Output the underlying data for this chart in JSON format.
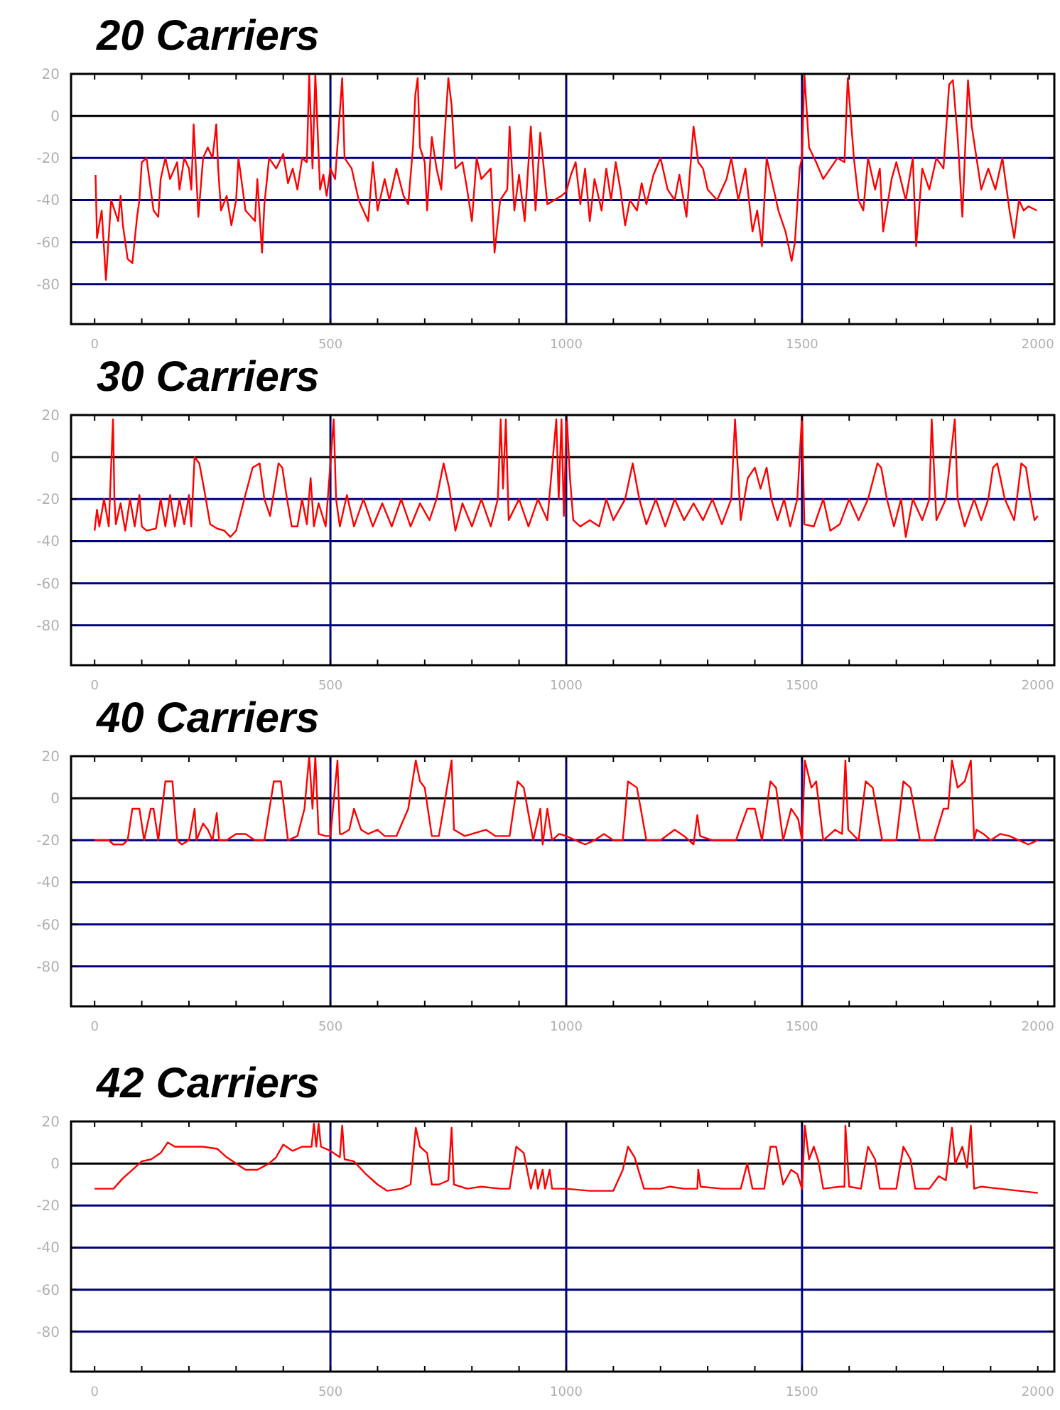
{
  "chart_data": [
    {
      "type": "line",
      "title": "20 Carriers",
      "xlim": [
        -50,
        2035
      ],
      "ylim": [
        -99,
        20
      ],
      "xticks": [
        0,
        {
          "value": 100,
          "label": null
        },
        {
          "value": 200,
          "label": null
        },
        {
          "value": 300,
          "label": null
        },
        {
          "value": 400,
          "label": null
        },
        500,
        {
          "value": 600,
          "label": null
        },
        {
          "value": 700,
          "label": null
        },
        {
          "value": 800,
          "label": null
        },
        {
          "value": 900,
          "label": null
        },
        1000,
        {
          "value": 1100,
          "label": null
        },
        {
          "value": 1200,
          "label": null
        },
        {
          "value": 1300,
          "label": null
        },
        {
          "value": 1400,
          "label": null
        },
        1500,
        {
          "value": 1600,
          "label": null
        },
        {
          "value": 1700,
          "label": null
        },
        {
          "value": 1800,
          "label": null
        },
        {
          "value": 1900,
          "label": null
        },
        2000
      ],
      "yticks": [
        -80,
        -60,
        -40,
        -20,
        0,
        20
      ],
      "ref_lines": [
        {
          "axis": "y",
          "value": 0,
          "color": "#000000"
        },
        {
          "axis": "y",
          "value": -20,
          "color": "#000080"
        },
        {
          "axis": "y",
          "value": -40,
          "color": "#000080"
        },
        {
          "axis": "y",
          "value": -60,
          "color": "#000080"
        },
        {
          "axis": "y",
          "value": -80,
          "color": "#000080"
        },
        {
          "axis": "x",
          "value": 500,
          "color": "#000080"
        },
        {
          "axis": "x",
          "value": 1000,
          "color": "#000080"
        },
        {
          "axis": "x",
          "value": 1500,
          "color": "#000080"
        }
      ],
      "x": [
        2,
        5,
        15,
        24,
        35,
        50,
        55,
        60,
        70,
        80,
        90,
        95,
        100,
        110,
        125,
        135,
        140,
        150,
        160,
        175,
        180,
        190,
        200,
        205,
        210,
        220,
        230,
        240,
        250,
        258,
        262,
        268,
        280,
        290,
        300,
        305,
        320,
        340,
        345,
        355,
        360,
        370,
        385,
        400,
        410,
        420,
        430,
        440,
        450,
        455,
        462,
        468,
        478,
        485,
        492,
        500,
        510,
        525,
        530,
        545,
        560,
        580,
        590,
        600,
        615,
        625,
        640,
        655,
        665,
        675,
        680,
        685,
        690,
        700,
        705,
        715,
        725,
        735,
        750,
        757,
        765,
        780,
        790,
        800,
        810,
        820,
        840,
        848,
        860,
        875,
        880,
        890,
        900,
        912,
        925,
        935,
        945,
        960,
        990,
        1000,
        1010,
        1020,
        1030,
        1040,
        1050,
        1060,
        1075,
        1085,
        1095,
        1105,
        1115,
        1125,
        1135,
        1150,
        1160,
        1170,
        1185,
        1200,
        1215,
        1230,
        1240,
        1255,
        1270,
        1280,
        1290,
        1300,
        1320,
        1340,
        1350,
        1365,
        1380,
        1395,
        1405,
        1415,
        1425,
        1435,
        1450,
        1465,
        1478,
        1485,
        1495,
        1500,
        1505,
        1515,
        1530,
        1545,
        1560,
        1575,
        1590,
        1597,
        1610,
        1620,
        1630,
        1640,
        1655,
        1665,
        1672,
        1690,
        1700,
        1720,
        1735,
        1742,
        1755,
        1770,
        1785,
        1800,
        1812,
        1820,
        1830,
        1840,
        1852,
        1860,
        1870,
        1880,
        1895,
        1910,
        1925,
        1940,
        1950,
        1960,
        1970,
        1980,
        1998
      ],
      "series": [
        {
          "color": "#ff0000",
          "values": [
            -28,
            -58,
            -45,
            -78,
            -40,
            -50,
            -38,
            -52,
            -68,
            -70,
            -48,
            -40,
            -22,
            -20,
            -45,
            -48,
            -30,
            -20,
            -30,
            -22,
            -35,
            -20,
            -25,
            -35,
            -4,
            -48,
            -20,
            -15,
            -20,
            -4,
            -25,
            -45,
            -38,
            -52,
            -40,
            -20,
            -45,
            -50,
            -30,
            -65,
            -42,
            -20,
            -25,
            -18,
            -32,
            -25,
            -35,
            -20,
            -22,
            20,
            -25,
            20,
            -35,
            -28,
            -38,
            -25,
            -30,
            18,
            -20,
            -25,
            -40,
            -50,
            -22,
            -45,
            -30,
            -40,
            -25,
            -38,
            -42,
            -15,
            10,
            18,
            -15,
            -22,
            -45,
            -10,
            -25,
            -35,
            18,
            5,
            -25,
            -22,
            -35,
            -50,
            -20,
            -30,
            -25,
            -65,
            -40,
            -35,
            -5,
            -45,
            -28,
            -50,
            -5,
            -45,
            -8,
            -42,
            -38,
            -36,
            -28,
            -22,
            -42,
            -25,
            -50,
            -30,
            -45,
            -25,
            -40,
            -22,
            -35,
            -52,
            -40,
            -45,
            -32,
            -42,
            -28,
            -20,
            -35,
            -40,
            -28,
            -48,
            -5,
            -22,
            -25,
            -35,
            -40,
            -30,
            -20,
            -40,
            -25,
            -55,
            -45,
            -62,
            -20,
            -30,
            -45,
            -55,
            -69,
            -60,
            -25,
            -20,
            20,
            -15,
            -22,
            -30,
            -25,
            -20,
            -22,
            18,
            -20,
            -40,
            -45,
            -20,
            -35,
            -25,
            -55,
            -30,
            -22,
            -40,
            -20,
            -62,
            -25,
            -35,
            -20,
            -25,
            15,
            17,
            -10,
            -48,
            17,
            -5,
            -20,
            -35,
            -25,
            -35,
            -20,
            -45,
            -58,
            -40,
            -45,
            -43,
            -45
          ]
        }
      ]
    },
    {
      "type": "line",
      "title": "30 Carriers",
      "xlim": [
        -50,
        2035
      ],
      "ylim": [
        -99,
        20
      ],
      "xticks": [
        0,
        {
          "value": 100,
          "label": null
        },
        {
          "value": 200,
          "label": null
        },
        {
          "value": 300,
          "label": null
        },
        {
          "value": 400,
          "label": null
        },
        500,
        {
          "value": 600,
          "label": null
        },
        {
          "value": 700,
          "label": null
        },
        {
          "value": 800,
          "label": null
        },
        {
          "value": 900,
          "label": null
        },
        1000,
        {
          "value": 1100,
          "label": null
        },
        {
          "value": 1200,
          "label": null
        },
        {
          "value": 1300,
          "label": null
        },
        {
          "value": 1400,
          "label": null
        },
        1500,
        {
          "value": 1600,
          "label": null
        },
        {
          "value": 1700,
          "label": null
        },
        {
          "value": 1800,
          "label": null
        },
        {
          "value": 1900,
          "label": null
        },
        2000
      ],
      "yticks": [
        -80,
        -60,
        -40,
        -20,
        0,
        20
      ],
      "ref_lines": [
        {
          "axis": "y",
          "value": 0,
          "color": "#000000"
        },
        {
          "axis": "y",
          "value": -20,
          "color": "#000080"
        },
        {
          "axis": "y",
          "value": -40,
          "color": "#000080"
        },
        {
          "axis": "y",
          "value": -60,
          "color": "#000080"
        },
        {
          "axis": "y",
          "value": -80,
          "color": "#000080"
        },
        {
          "axis": "x",
          "value": 500,
          "color": "#000080"
        },
        {
          "axis": "x",
          "value": 1000,
          "color": "#000080"
        },
        {
          "axis": "x",
          "value": 1500,
          "color": "#000080"
        }
      ],
      "x": [
        0,
        5,
        10,
        20,
        30,
        39,
        42,
        45,
        55,
        65,
        75,
        85,
        95,
        100,
        110,
        130,
        140,
        150,
        160,
        170,
        180,
        190,
        200,
        205,
        212,
        222,
        232,
        245,
        260,
        275,
        288,
        300,
        315,
        335,
        350,
        360,
        372,
        390,
        398,
        408,
        418,
        430,
        440,
        450,
        458,
        465,
        475,
        490,
        507,
        512,
        520,
        535,
        550,
        570,
        590,
        610,
        630,
        650,
        670,
        690,
        710,
        725,
        740,
        752,
        765,
        780,
        800,
        820,
        840,
        855,
        861,
        866,
        872,
        878,
        900,
        920,
        940,
        960,
        979,
        984,
        990,
        995,
        1001,
        1008,
        1015,
        1030,
        1050,
        1070,
        1085,
        1100,
        1125,
        1141,
        1155,
        1170,
        1190,
        1210,
        1230,
        1250,
        1270,
        1290,
        1310,
        1330,
        1350,
        1358,
        1370,
        1385,
        1400,
        1412,
        1425,
        1435,
        1448,
        1462,
        1475,
        1490,
        1500,
        1505,
        1525,
        1545,
        1560,
        1580,
        1600,
        1620,
        1640,
        1660,
        1668,
        1680,
        1695,
        1710,
        1720,
        1735,
        1755,
        1770,
        1775,
        1785,
        1805,
        1824,
        1830,
        1845,
        1865,
        1880,
        1895,
        1905,
        1914,
        1930,
        1950,
        1965,
        1975,
        1985,
        1993,
        2000
      ],
      "series": [
        {
          "color": "#ff0000",
          "values": [
            -35,
            -25,
            -33,
            -20,
            -33,
            18,
            -20,
            -32,
            -22,
            -35,
            -20,
            -33,
            -18,
            -33,
            -35,
            -34,
            -20,
            -33,
            -18,
            -33,
            -20,
            -32,
            -18,
            -33,
            0,
            -3,
            -15,
            -32,
            -34,
            -35,
            -38,
            -35,
            -22,
            -5,
            -3,
            -20,
            -28,
            -3,
            -5,
            -20,
            -33,
            -33,
            -20,
            -32,
            -10,
            -33,
            -22,
            -33,
            18,
            -20,
            -33,
            -18,
            -33,
            -20,
            -33,
            -22,
            -33,
            -20,
            -33,
            -22,
            -30,
            -20,
            -3,
            -15,
            -35,
            -22,
            -33,
            -20,
            -33,
            -20,
            18,
            -15,
            18,
            -30,
            -20,
            -33,
            -20,
            -30,
            18,
            -20,
            18,
            -28,
            20,
            -10,
            -30,
            -33,
            -30,
            -33,
            -20,
            -30,
            -20,
            -3,
            -20,
            -32,
            -20,
            -33,
            -20,
            -30,
            -22,
            -30,
            -20,
            -32,
            -20,
            18,
            -30,
            -10,
            -5,
            -15,
            -5,
            -20,
            -30,
            -20,
            -33,
            -20,
            20,
            -32,
            -33,
            -20,
            -35,
            -32,
            -20,
            -30,
            -20,
            -3,
            -5,
            -20,
            -33,
            -20,
            -38,
            -20,
            -30,
            -20,
            18,
            -30,
            -20,
            18,
            -20,
            -33,
            -20,
            -30,
            -20,
            -5,
            -3,
            -20,
            -30,
            -3,
            -5,
            -20,
            -30,
            -28
          ]
        }
      ]
    },
    {
      "type": "line",
      "title": "40 Carriers",
      "xlim": [
        -50,
        2035
      ],
      "ylim": [
        -99,
        20
      ],
      "xticks": [
        0,
        {
          "value": 100,
          "label": null
        },
        {
          "value": 200,
          "label": null
        },
        {
          "value": 300,
          "label": null
        },
        {
          "value": 400,
          "label": null
        },
        500,
        {
          "value": 600,
          "label": null
        },
        {
          "value": 700,
          "label": null
        },
        {
          "value": 800,
          "label": null
        },
        {
          "value": 900,
          "label": null
        },
        1000,
        {
          "value": 1100,
          "label": null
        },
        {
          "value": 1200,
          "label": null
        },
        {
          "value": 1300,
          "label": null
        },
        {
          "value": 1400,
          "label": null
        },
        1500,
        {
          "value": 1600,
          "label": null
        },
        {
          "value": 1700,
          "label": null
        },
        {
          "value": 1800,
          "label": null
        },
        {
          "value": 1900,
          "label": null
        },
        2000
      ],
      "yticks": [
        -80,
        -60,
        -40,
        -20,
        0,
        20
      ],
      "ref_lines": [
        {
          "axis": "y",
          "value": 0,
          "color": "#000000"
        },
        {
          "axis": "y",
          "value": -20,
          "color": "#000080"
        },
        {
          "axis": "y",
          "value": -40,
          "color": "#000080"
        },
        {
          "axis": "y",
          "value": -60,
          "color": "#000080"
        },
        {
          "axis": "y",
          "value": -80,
          "color": "#000080"
        },
        {
          "axis": "x",
          "value": 500,
          "color": "#000080"
        },
        {
          "axis": "x",
          "value": 1000,
          "color": "#000080"
        },
        {
          "axis": "x",
          "value": 1500,
          "color": "#000080"
        }
      ],
      "x": [
        0,
        30,
        40,
        60,
        70,
        80,
        95,
        105,
        119,
        125,
        135,
        150,
        165,
        175,
        185,
        200,
        212,
        216,
        230,
        240,
        250,
        259,
        264,
        280,
        300,
        320,
        340,
        360,
        380,
        395,
        410,
        430,
        445,
        455,
        462,
        468,
        475,
        490,
        500,
        515,
        520,
        525,
        540,
        550,
        565,
        580,
        600,
        615,
        640,
        665,
        681,
        690,
        700,
        715,
        730,
        757,
        762,
        785,
        800,
        830,
        850,
        880,
        897,
        910,
        930,
        945,
        950,
        960,
        970,
        985,
        1000,
        1020,
        1040,
        1060,
        1080,
        1100,
        1120,
        1131,
        1150,
        1170,
        1200,
        1230,
        1250,
        1270,
        1278,
        1284,
        1310,
        1330,
        1360,
        1384,
        1400,
        1415,
        1433,
        1445,
        1460,
        1477,
        1492,
        1500,
        1506,
        1520,
        1530,
        1545,
        1570,
        1585,
        1592,
        1598,
        1620,
        1635,
        1650,
        1670,
        1700,
        1715,
        1730,
        1750,
        1780,
        1800,
        1810,
        1818,
        1830,
        1845,
        1858,
        1865,
        1870,
        1885,
        1900,
        1920,
        1940,
        1960,
        1980,
        2000
      ],
      "series": [
        {
          "color": "#ff0000",
          "values": [
            -20,
            -20,
            -22,
            -22,
            -20,
            -5,
            -5,
            -20,
            -5,
            -5,
            -20,
            8,
            8,
            -20,
            -22,
            -20,
            -5,
            -20,
            -12,
            -15,
            -20,
            -7,
            -20,
            -20,
            -17,
            -17,
            -20,
            -20,
            8,
            8,
            -20,
            -18,
            -5,
            20,
            -5,
            20,
            -17,
            -18,
            -18,
            18,
            -17,
            -17,
            -15,
            -5,
            -15,
            -17,
            -15,
            -18,
            -18,
            -5,
            18,
            8,
            5,
            -18,
            -18,
            18,
            -15,
            -18,
            -17,
            -15,
            -18,
            -18,
            8,
            5,
            -20,
            -5,
            -22,
            -5,
            -20,
            -17,
            -18,
            -20,
            -22,
            -20,
            -17,
            -20,
            -20,
            8,
            5,
            -20,
            -20,
            -15,
            -18,
            -22,
            -8,
            -18,
            -20,
            -20,
            -20,
            -5,
            -5,
            -20,
            8,
            5,
            -20,
            -5,
            -10,
            -20,
            18,
            5,
            8,
            -20,
            -15,
            -17,
            18,
            -15,
            -20,
            8,
            5,
            -20,
            -20,
            8,
            5,
            -20,
            -20,
            -5,
            -5,
            18,
            5,
            8,
            18,
            -20,
            -15,
            -17,
            -20,
            -17,
            -18,
            -20,
            -22,
            -20
          ]
        }
      ]
    },
    {
      "type": "line",
      "title": "42 Carriers",
      "xlim": [
        -50,
        2035
      ],
      "ylim": [
        -99,
        20
      ],
      "xticks": [
        0,
        {
          "value": 100,
          "label": null
        },
        {
          "value": 200,
          "label": null
        },
        {
          "value": 300,
          "label": null
        },
        {
          "value": 400,
          "label": null
        },
        500,
        {
          "value": 600,
          "label": null
        },
        {
          "value": 700,
          "label": null
        },
        {
          "value": 800,
          "label": null
        },
        {
          "value": 900,
          "label": null
        },
        1000,
        {
          "value": 1100,
          "label": null
        },
        {
          "value": 1200,
          "label": null
        },
        {
          "value": 1300,
          "label": null
        },
        {
          "value": 1400,
          "label": null
        },
        1500,
        {
          "value": 1600,
          "label": null
        },
        {
          "value": 1700,
          "label": null
        },
        {
          "value": 1800,
          "label": null
        },
        {
          "value": 1900,
          "label": null
        },
        2000
      ],
      "yticks": [
        -80,
        -60,
        -40,
        -20,
        0,
        20
      ],
      "ref_lines": [
        {
          "axis": "y",
          "value": 0,
          "color": "#000000"
        },
        {
          "axis": "y",
          "value": -20,
          "color": "#000080"
        },
        {
          "axis": "y",
          "value": -40,
          "color": "#000080"
        },
        {
          "axis": "y",
          "value": -60,
          "color": "#000080"
        },
        {
          "axis": "y",
          "value": -80,
          "color": "#000080"
        },
        {
          "axis": "x",
          "value": 500,
          "color": "#000080"
        },
        {
          "axis": "x",
          "value": 1000,
          "color": "#000080"
        },
        {
          "axis": "x",
          "value": 1500,
          "color": "#000080"
        }
      ],
      "x": [
        0,
        40,
        60,
        80,
        100,
        120,
        140,
        155,
        170,
        200,
        230,
        260,
        280,
        300,
        320,
        345,
        370,
        385,
        400,
        420,
        440,
        460,
        465,
        470,
        475,
        480,
        490,
        500,
        520,
        525,
        530,
        550,
        575,
        600,
        620,
        650,
        670,
        681,
        690,
        705,
        715,
        730,
        750,
        757,
        762,
        790,
        820,
        860,
        880,
        894,
        910,
        925,
        935,
        940,
        950,
        955,
        965,
        970,
        1000,
        1050,
        1100,
        1120,
        1131,
        1145,
        1165,
        1200,
        1220,
        1250,
        1278,
        1280,
        1285,
        1330,
        1370,
        1384,
        1395,
        1420,
        1433,
        1445,
        1460,
        1477,
        1490,
        1500,
        1506,
        1515,
        1525,
        1535,
        1545,
        1580,
        1590,
        1592,
        1600,
        1625,
        1640,
        1655,
        1665,
        1700,
        1715,
        1730,
        1740,
        1770,
        1790,
        1805,
        1818,
        1825,
        1840,
        1850,
        1858,
        1865,
        1880,
        1920,
        1960,
        2000
      ],
      "series": [
        {
          "color": "#ff0000",
          "values": [
            -12,
            -12,
            -7,
            -3,
            1,
            2,
            5,
            10,
            8,
            8,
            8,
            7,
            3,
            0,
            -3,
            -3,
            0,
            3,
            9,
            6,
            8,
            8,
            19,
            8,
            19,
            8,
            7,
            6,
            3,
            18,
            2,
            1,
            -5,
            -10,
            -13,
            -12,
            -10,
            17,
            8,
            5,
            -10,
            -10,
            -8,
            17,
            -10,
            -12,
            -11,
            -12,
            -12,
            8,
            5,
            -12,
            -3,
            -12,
            -3,
            -12,
            -3,
            -12,
            -12,
            -13,
            -13,
            -3,
            8,
            3,
            -12,
            -12,
            -11,
            -12,
            -12,
            -3,
            -11,
            -12,
            -12,
            0,
            -12,
            -12,
            8,
            8,
            -10,
            -3,
            -5,
            -12,
            18,
            2,
            8,
            1,
            -12,
            -11,
            -11,
            18,
            -11,
            -12,
            8,
            2,
            -12,
            -12,
            8,
            2,
            -12,
            -12,
            -6,
            -8,
            17,
            0,
            8,
            -2,
            18,
            -12,
            -11,
            -12,
            -13,
            -14
          ]
        }
      ]
    }
  ]
}
